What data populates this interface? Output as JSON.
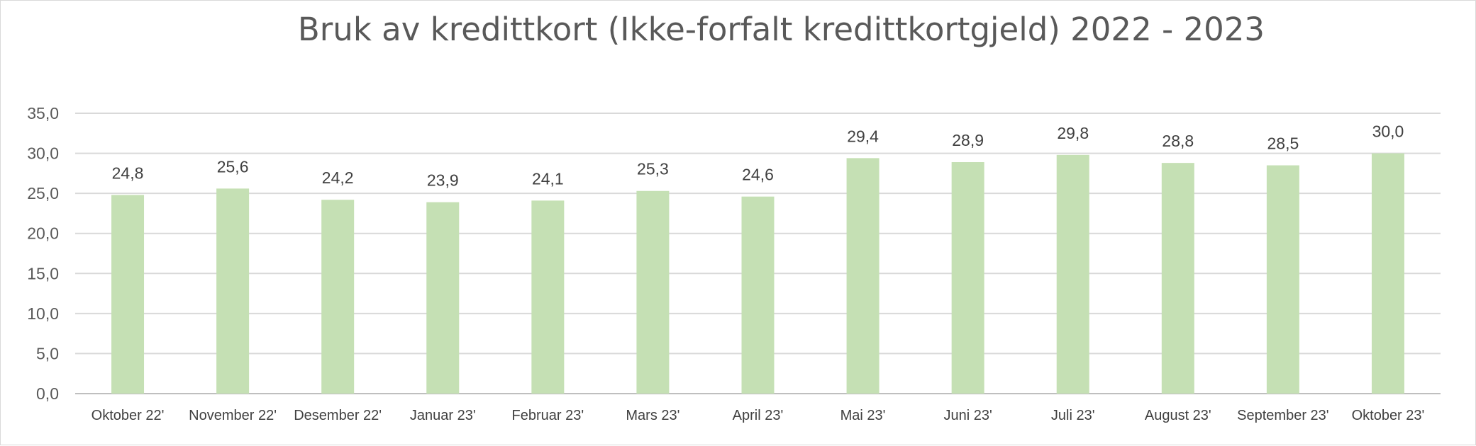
{
  "chart_data": {
    "type": "bar",
    "title": "Bruk av kredittkort (Ikke-forfalt kredittkortgjeld) 2022 - 2023",
    "categories": [
      "Oktober 22'",
      "November 22'",
      "Desember 22'",
      "Januar 23'",
      "Februar 23'",
      "Mars 23'",
      "April 23'",
      "Mai 23'",
      "Juni 23'",
      "Juli 23'",
      "August 23'",
      "September 23'",
      "Oktober 23'"
    ],
    "values": [
      24.8,
      25.6,
      24.2,
      23.9,
      24.1,
      25.3,
      24.6,
      29.4,
      28.9,
      29.8,
      28.8,
      28.5,
      30.0
    ],
    "data_labels": [
      "24,8",
      "25,6",
      "24,2",
      "23,9",
      "24,1",
      "25,3",
      "24,6",
      "29,4",
      "28,9",
      "29,8",
      "28,8",
      "28,5",
      "30,0"
    ],
    "y_ticks": [
      "0,0",
      "5,0",
      "10,0",
      "15,0",
      "20,0",
      "25,0",
      "30,0",
      "35,0"
    ],
    "ylim": [
      0,
      35
    ],
    "grid": true,
    "legend": "none",
    "bar_color": "#c5e0b4"
  }
}
